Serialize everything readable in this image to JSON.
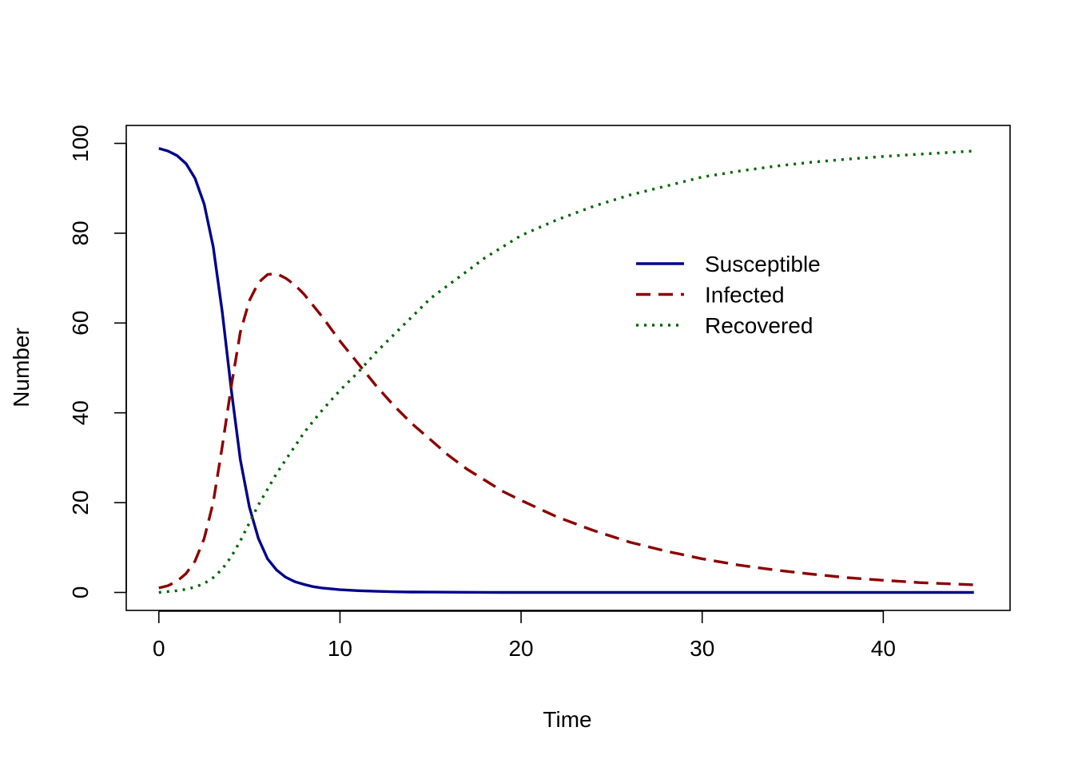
{
  "chart_data": {
    "type": "line",
    "title": "",
    "xlabel": "Time",
    "ylabel": "Number",
    "xlim": [
      -1.8,
      47
    ],
    "ylim": [
      -4,
      104
    ],
    "x_ticks": [
      0,
      10,
      20,
      30,
      40
    ],
    "y_ticks": [
      0,
      20,
      40,
      60,
      80,
      100
    ],
    "grid": false,
    "legend": {
      "position": "top-right",
      "frame": false
    },
    "x": [
      0,
      0.5,
      1,
      1.5,
      2,
      2.5,
      3,
      3.5,
      4,
      4.5,
      5,
      5.5,
      6,
      6.5,
      7,
      7.5,
      8,
      8.5,
      9,
      10,
      11,
      12,
      13,
      14,
      15,
      16,
      17,
      18,
      19,
      20,
      22,
      24,
      26,
      28,
      30,
      32,
      34,
      36,
      38,
      40,
      42,
      45
    ],
    "series": [
      {
        "name": "Susceptible",
        "color": "#00008B",
        "dash": "solid",
        "values": [
          98.9,
          98.3,
          97.3,
          95.5,
          92.2,
          86.5,
          77.0,
          62.5,
          45.0,
          29.5,
          19.0,
          12.0,
          7.5,
          5.0,
          3.4,
          2.4,
          1.8,
          1.3,
          1.0,
          0.6,
          0.4,
          0.25,
          0.15,
          0.1,
          0.07,
          0.05,
          0.03,
          0.02,
          0.01,
          0.01,
          0,
          0,
          0,
          0,
          0,
          0,
          0,
          0,
          0,
          0,
          0,
          0
        ]
      },
      {
        "name": "Infected",
        "color": "#8B0000",
        "dash": "dashed",
        "values": [
          1.0,
          1.5,
          2.5,
          4.2,
          7.0,
          12.0,
          20.0,
          32.5,
          46.0,
          58.0,
          65.0,
          69.0,
          70.8,
          71.0,
          70.0,
          68.5,
          66.5,
          64.0,
          61.5,
          56.0,
          51.0,
          46.0,
          41.5,
          37.5,
          34.0,
          30.5,
          27.5,
          25.0,
          22.5,
          20.5,
          16.8,
          13.8,
          11.2,
          9.2,
          7.5,
          6.1,
          5.0,
          4.1,
          3.3,
          2.7,
          2.2,
          1.7
        ]
      },
      {
        "name": "Recovered",
        "color": "#006400",
        "dash": "dotted",
        "values": [
          0,
          0.2,
          0.4,
          0.7,
          1.2,
          2.0,
          3.3,
          5.2,
          8.0,
          11.5,
          15.5,
          19.5,
          23.0,
          26.5,
          29.5,
          32.5,
          35.5,
          38.0,
          40.5,
          45.0,
          49.0,
          53.5,
          57.5,
          61.5,
          65.5,
          68.5,
          71.5,
          74.5,
          77.0,
          79.5,
          83.0,
          86.0,
          88.5,
          90.5,
          92.5,
          93.8,
          94.9,
          95.8,
          96.5,
          97.1,
          97.6,
          98.3
        ]
      }
    ]
  }
}
